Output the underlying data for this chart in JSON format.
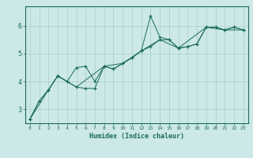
{
  "xlabel": "Humidex (Indice chaleur)",
  "ylabel": "",
  "bg_color": "#cce8e8",
  "line_color": "#1a6b5a",
  "marker_color": "#1a6b5a",
  "grid_color": "#aacccc",
  "axis_color": "#1a6b5a",
  "text_color": "#1a6b5a",
  "xlim": [
    -0.5,
    23.5
  ],
  "ylim": [
    2.5,
    6.7
  ],
  "yticks": [
    3,
    4,
    5,
    6
  ],
  "xticks": [
    0,
    1,
    2,
    3,
    4,
    5,
    6,
    7,
    8,
    9,
    10,
    11,
    12,
    13,
    14,
    15,
    16,
    17,
    18,
    19,
    20,
    21,
    22,
    23
  ],
  "series1": [
    [
      0,
      2.65
    ],
    [
      1,
      3.3
    ],
    [
      2,
      3.7
    ],
    [
      3,
      4.2
    ],
    [
      4,
      4.0
    ],
    [
      5,
      3.8
    ],
    [
      6,
      3.75
    ],
    [
      7,
      3.75
    ],
    [
      8,
      4.55
    ],
    [
      9,
      4.45
    ],
    [
      10,
      4.65
    ],
    [
      11,
      4.85
    ],
    [
      12,
      5.1
    ],
    [
      13,
      6.35
    ],
    [
      14,
      5.6
    ],
    [
      15,
      5.5
    ],
    [
      16,
      5.2
    ],
    [
      17,
      5.25
    ],
    [
      18,
      5.35
    ],
    [
      19,
      5.95
    ],
    [
      20,
      5.95
    ],
    [
      21,
      5.85
    ],
    [
      22,
      5.95
    ],
    [
      23,
      5.85
    ]
  ],
  "series2": [
    [
      0,
      2.65
    ],
    [
      1,
      3.3
    ],
    [
      2,
      3.7
    ],
    [
      3,
      4.2
    ],
    [
      4,
      4.0
    ],
    [
      5,
      4.5
    ],
    [
      6,
      4.55
    ],
    [
      7,
      4.0
    ],
    [
      8,
      4.55
    ],
    [
      9,
      4.45
    ],
    [
      10,
      4.65
    ],
    [
      11,
      4.85
    ],
    [
      12,
      5.1
    ],
    [
      13,
      5.25
    ],
    [
      14,
      5.5
    ],
    [
      15,
      5.5
    ],
    [
      16,
      5.2
    ],
    [
      17,
      5.25
    ],
    [
      18,
      5.35
    ],
    [
      19,
      5.95
    ],
    [
      20,
      5.95
    ],
    [
      21,
      5.85
    ],
    [
      22,
      5.95
    ],
    [
      23,
      5.85
    ]
  ],
  "series3": [
    [
      0,
      2.65
    ],
    [
      2,
      3.7
    ],
    [
      3,
      4.2
    ],
    [
      5,
      3.8
    ],
    [
      8,
      4.55
    ],
    [
      10,
      4.65
    ],
    [
      12,
      5.1
    ],
    [
      14,
      5.5
    ],
    [
      16,
      5.2
    ],
    [
      19,
      5.95
    ],
    [
      21,
      5.85
    ],
    [
      23,
      5.85
    ]
  ]
}
